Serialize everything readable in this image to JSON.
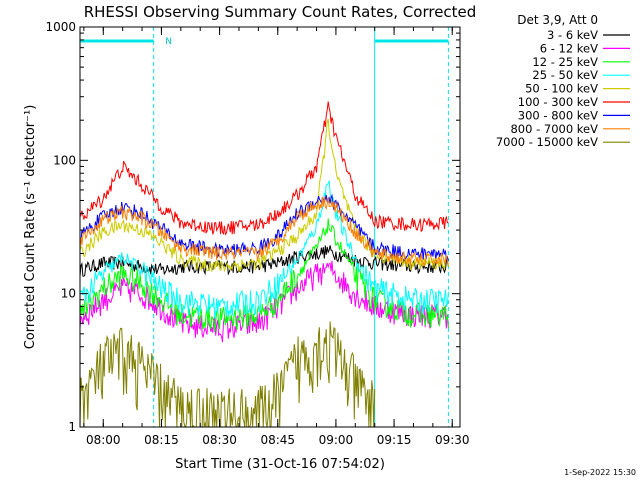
{
  "chart_data": {
    "type": "line",
    "title": "RHESSI Observing Summary Count Rates, Corrected",
    "xlabel": "Start Time (31-Oct-16 07:54:02)",
    "ylabel": "Corrected Count Rate (s⁻¹ detector⁻¹)",
    "yscale": "log",
    "ylim": [
      1,
      1000
    ],
    "xlim": [
      "07:54",
      "09:32"
    ],
    "x_tick_labels": [
      "08:00",
      "08:15",
      "08:30",
      "08:45",
      "09:00",
      "09:15",
      "09:30"
    ],
    "y_tick_labels": [
      "1",
      "10",
      "100",
      "1000"
    ],
    "grid": false,
    "legend_position": "right",
    "legend_title": "Det 3,9, Att 0",
    "annotations": [
      {
        "text": "N",
        "x": "08:16"
      }
    ],
    "night_intervals": [
      {
        "start": "07:54",
        "end": "08:13"
      },
      {
        "start": "09:10",
        "end": "09:29"
      }
    ],
    "x_sample_times": [
      "07:54",
      "08:00",
      "08:05",
      "08:10",
      "08:15",
      "08:20",
      "08:30",
      "08:40",
      "08:45",
      "08:50",
      "08:55",
      "08:58",
      "09:00",
      "09:05",
      "09:10",
      "09:20",
      "09:29"
    ],
    "series": [
      {
        "name": "3 - 6 keV",
        "color": "#000000",
        "values": [
          15,
          17,
          17,
          16,
          15,
          16,
          16,
          16,
          17,
          19,
          20,
          21,
          20,
          18,
          17,
          16,
          16
        ]
      },
      {
        "name": "6 - 12 keV",
        "color": "#ff00ff",
        "values": [
          6.5,
          9,
          11,
          10,
          8,
          6,
          5.5,
          6,
          8,
          11,
          14,
          16,
          14,
          10,
          8,
          7,
          7
        ]
      },
      {
        "name": "12 - 25 keV",
        "color": "#00ff00",
        "values": [
          7,
          11,
          14,
          12,
          9,
          7,
          6.5,
          7,
          9,
          14,
          22,
          33,
          26,
          14,
          9,
          7,
          7
        ]
      },
      {
        "name": "25 - 50 keV",
        "color": "#00ffff",
        "values": [
          9,
          14,
          19,
          15,
          11,
          9,
          8,
          9,
          12,
          18,
          32,
          70,
          40,
          18,
          11,
          9,
          9
        ]
      },
      {
        "name": "50 - 100 keV",
        "color": "#cccc00",
        "values": [
          20,
          29,
          33,
          30,
          24,
          18,
          16,
          17,
          21,
          27,
          40,
          200,
          80,
          30,
          20,
          17,
          17
        ]
      },
      {
        "name": "100 - 300 keV",
        "color": "#ff0000",
        "values": [
          37,
          52,
          90,
          65,
          45,
          34,
          31,
          33,
          40,
          55,
          90,
          250,
          150,
          55,
          35,
          33,
          34
        ]
      },
      {
        "name": "300 - 800 keV",
        "color": "#0000ff",
        "values": [
          27,
          38,
          45,
          40,
          31,
          24,
          21,
          22,
          27,
          40,
          50,
          53,
          46,
          32,
          22,
          20,
          20
        ]
      },
      {
        "name": "800 - 7000 keV",
        "color": "#ff8000",
        "values": [
          25,
          36,
          41,
          37,
          29,
          22,
          20,
          20,
          25,
          38,
          47,
          50,
          44,
          29,
          20,
          18,
          18
        ]
      },
      {
        "name": "7000 - 15000 keV",
        "color": "#808000",
        "values": [
          1.5,
          2.8,
          3.5,
          2.7,
          1.8,
          1.3,
          1.2,
          1.2,
          1.6,
          3.0,
          4.0,
          4.2,
          3.5,
          2.0,
          1.3,
          null,
          null
        ]
      }
    ]
  },
  "footer": {
    "timestamp": "1-Sep-2022 15:30"
  }
}
